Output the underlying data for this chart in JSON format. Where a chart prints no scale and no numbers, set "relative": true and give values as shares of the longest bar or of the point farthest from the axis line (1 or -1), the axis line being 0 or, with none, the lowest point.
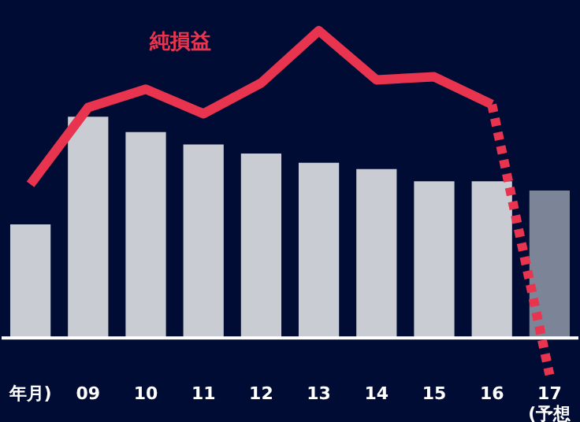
{
  "chart_data": {
    "type": "bar",
    "relative": true,
    "categories": [
      "年月)",
      "09",
      "10",
      "11",
      "12",
      "13",
      "14",
      "15",
      "16",
      "17\n(予想"
    ],
    "values": [
      0.37,
      0.72,
      0.67,
      0.63,
      0.6,
      0.57,
      0.55,
      0.51,
      0.51,
      0.48
    ],
    "colors": [
      "#c9cdd3",
      "#c9cdd3",
      "#c9cdd3",
      "#c9cdd3",
      "#c9cdd3",
      "#c9cdd3",
      "#c9cdd3",
      "#c9cdd3",
      "#c9cdd3",
      "#7c8497"
    ],
    "series": [
      {
        "type": "line",
        "name": "純損益",
        "color": "#e8344e",
        "line_style": "solid",
        "values": [
          0.5,
          0.75,
          0.81,
          0.73,
          0.83,
          1.0,
          0.84,
          0.85,
          0.76,
          null
        ]
      },
      {
        "type": "line",
        "color": "#e8344e",
        "line_style": "dotted",
        "values": [
          null,
          null,
          null,
          null,
          null,
          null,
          null,
          null,
          0.76,
          -0.12
        ]
      }
    ],
    "grid": false
  }
}
